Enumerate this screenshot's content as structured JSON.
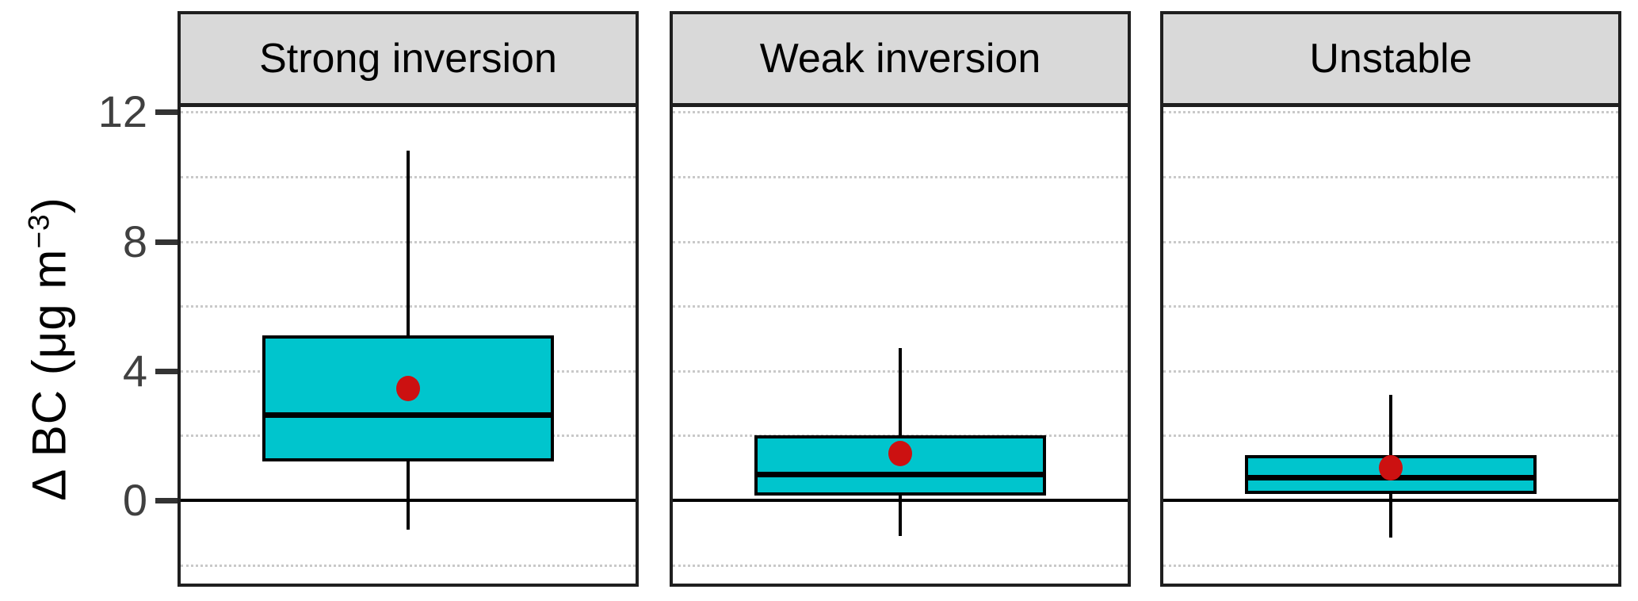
{
  "figure": {
    "ylabel_prefix": "Δ BC (μg m",
    "ylabel_sup": "−3",
    "ylabel_suffix": ")"
  },
  "chart_data": {
    "type": "boxplot",
    "title": "",
    "ylabel": "Δ BC (μg m⁻³)",
    "xlabel": "",
    "facets": [
      "Strong inversion",
      "Weak inversion",
      "Unstable"
    ],
    "yticks": [
      0,
      4,
      8,
      12
    ],
    "gridline_values": [
      -2,
      2,
      4,
      6,
      8,
      10,
      12
    ],
    "zero_line": 0,
    "ylim": [
      -2.6,
      12.1
    ],
    "grid": "dotted horizontal",
    "legend": "none",
    "series": [
      {
        "facet": "Strong inversion",
        "whisker_min": -0.9,
        "q1": 1.2,
        "median": 2.65,
        "q3": 5.1,
        "whisker_max": 10.8,
        "mean": 3.45
      },
      {
        "facet": "Weak inversion",
        "whisker_min": -1.1,
        "q1": 0.15,
        "median": 0.8,
        "q3": 2.0,
        "whisker_max": 4.7,
        "mean": 1.45
      },
      {
        "facet": "Unstable",
        "whisker_min": -1.15,
        "q1": 0.2,
        "median": 0.7,
        "q3": 1.4,
        "whisker_max": 3.25,
        "mean": 1.0
      }
    ],
    "colors": {
      "box_fill": "#00C5CD",
      "box_border": "#000000",
      "median": "#000000",
      "mean_dot": "#CC1111",
      "header_bg": "#D9D9D9",
      "gridline": "#C9C9C9",
      "axis_text": "#404040",
      "panel_border": "#1F1F1F",
      "zero_line": "#000000"
    }
  }
}
